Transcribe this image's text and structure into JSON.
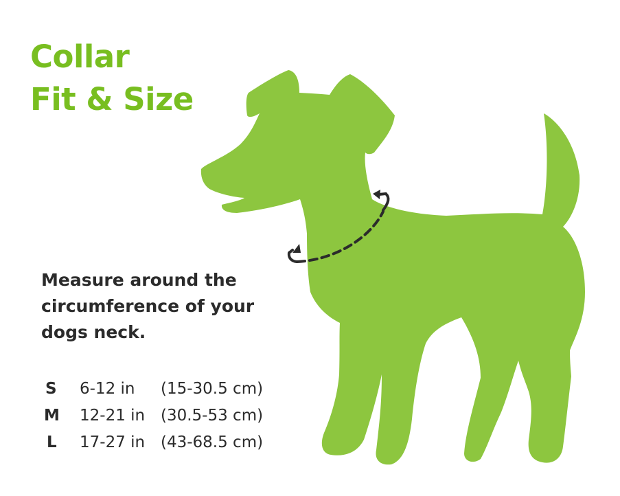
{
  "title": {
    "line1": "Collar",
    "line2": "Fit & Size"
  },
  "instruction": {
    "line1": "Measure around the",
    "line2": "circumference of your",
    "line3": "dogs neck."
  },
  "sizes": [
    {
      "size": "S",
      "inches": "6-12 in",
      "cm": "(15-30.5 cm)"
    },
    {
      "size": "M",
      "inches": "12-21 in",
      "cm": "(30.5-53 cm)"
    },
    {
      "size": "L",
      "inches": "17-27 in",
      "cm": "(43-68.5 cm)"
    }
  ],
  "colors": {
    "accent": "#78be20",
    "dog": "#8dc63f",
    "text": "#2b2b2b",
    "collar_line": "#2b2b2b"
  },
  "icons": [
    "dog-silhouette",
    "collar-measure-arrow"
  ]
}
